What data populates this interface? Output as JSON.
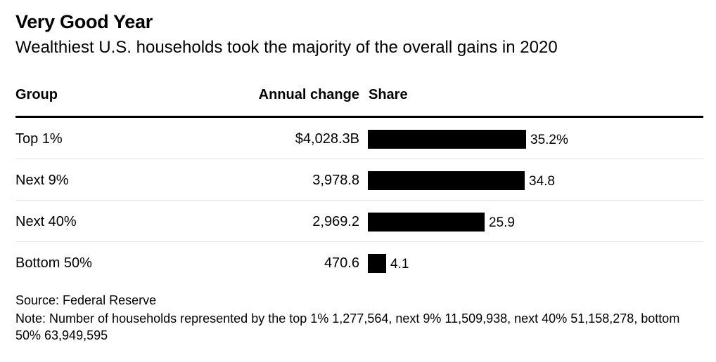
{
  "title": "Very Good Year",
  "subtitle": "Wealthiest U.S. households took the majority of the overall gains in 2020",
  "columns": {
    "group": "Group",
    "change": "Annual change",
    "share": "Share"
  },
  "rows": [
    {
      "group": "Top 1%",
      "change": "$4,028.3B",
      "share_label": "35.2%"
    },
    {
      "group": "Next 9%",
      "change": "3,978.8",
      "share_label": "34.8"
    },
    {
      "group": "Next 40%",
      "change": "2,969.2",
      "share_label": "25.9"
    },
    {
      "group": "Bottom 50%",
      "change": "470.6",
      "share_label": "4.1"
    }
  ],
  "source": "Source: Federal Reserve",
  "note": "Note: Number of households represented by the top 1% 1,277,564, next 9% 11,509,938, next 40% 51,158,278, bottom 50% 63,949,595",
  "chart_data": {
    "type": "table",
    "title": "Very Good Year",
    "subtitle": "Wealthiest U.S. households took the majority of the overall gains in 2020",
    "columns": [
      "Group",
      "Annual change",
      "Share"
    ],
    "categories": [
      "Top 1%",
      "Next 9%",
      "Next 40%",
      "Bottom 50%"
    ],
    "annual_change_billions_usd": [
      4028.3,
      3978.8,
      2969.2,
      470.6
    ],
    "share_percent": [
      35.2,
      34.8,
      25.9,
      4.1
    ],
    "bar_color": "#000000"
  }
}
